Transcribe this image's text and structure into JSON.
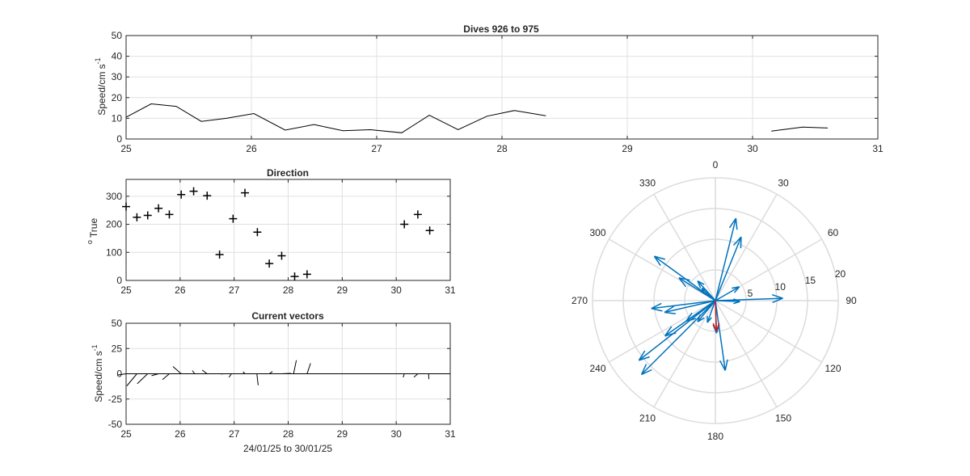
{
  "chart_data": [
    {
      "id": "speed",
      "type": "line",
      "title": "Dives 926 to 975",
      "ylabel": "Speed/cm s",
      "ylabel_sup": "-1",
      "xlim": [
        25,
        31
      ],
      "ylim": [
        0,
        50
      ],
      "xticks": [
        25,
        26,
        27,
        28,
        29,
        30,
        31
      ],
      "yticks": [
        0,
        10,
        20,
        30,
        40,
        50
      ],
      "grid": true,
      "series": [
        {
          "segments": [
            [
              [
                25.0,
                10.5
              ],
              [
                25.2,
                17.0
              ],
              [
                25.4,
                15.8
              ],
              [
                25.6,
                8.5
              ],
              [
                25.8,
                10.0
              ],
              [
                26.02,
                12.3
              ],
              [
                26.27,
                4.3
              ],
              [
                26.5,
                7.0
              ],
              [
                26.73,
                4.0
              ],
              [
                26.95,
                4.5
              ],
              [
                27.2,
                3.0
              ],
              [
                27.42,
                11.5
              ],
              [
                27.65,
                4.5
              ],
              [
                27.88,
                11.0
              ],
              [
                28.1,
                13.8
              ],
              [
                28.35,
                11.2
              ]
            ],
            [
              [
                30.15,
                3.8
              ],
              [
                30.4,
                5.8
              ],
              [
                30.6,
                5.3
              ]
            ]
          ]
        }
      ]
    },
    {
      "id": "direction",
      "type": "scatter",
      "title": "Direction",
      "ylabel": "True",
      "ylabel_sup": "o",
      "xlim": [
        25,
        31
      ],
      "ylim": [
        0,
        360
      ],
      "xticks": [
        25,
        26,
        27,
        28,
        29,
        30,
        31
      ],
      "yticks": [
        0,
        100,
        200,
        300
      ],
      "grid": true,
      "marker": "+",
      "points": [
        [
          25.0,
          263
        ],
        [
          25.2,
          225
        ],
        [
          25.4,
          232
        ],
        [
          25.6,
          257
        ],
        [
          25.8,
          235
        ],
        [
          26.02,
          306
        ],
        [
          26.25,
          318
        ],
        [
          26.5,
          302
        ],
        [
          26.73,
          92
        ],
        [
          26.98,
          220
        ],
        [
          27.2,
          312
        ],
        [
          27.43,
          172
        ],
        [
          27.65,
          60
        ],
        [
          27.88,
          88
        ],
        [
          28.12,
          14
        ],
        [
          28.35,
          22
        ],
        [
          30.15,
          200
        ],
        [
          30.4,
          235
        ],
        [
          30.62,
          178
        ]
      ]
    },
    {
      "id": "vectors",
      "type": "line",
      "title": "Current vectors",
      "ylabel": "Speed/cm s",
      "ylabel_sup": "-1",
      "xlabel": "24/01/25 to 30/01/25",
      "xlim": [
        25,
        31
      ],
      "ylim": [
        -50,
        50
      ],
      "xticks": [
        25,
        26,
        27,
        28,
        29,
        30,
        31
      ],
      "yticks": [
        -50,
        -25,
        0,
        25,
        50
      ],
      "grid": true,
      "stick_scale_days_per_cm_s": 0.0155,
      "sticks": [
        [
          25.0,
          263,
          10.5
        ],
        [
          25.2,
          225,
          17.0
        ],
        [
          25.4,
          232,
          15.8
        ],
        [
          25.6,
          257,
          8.5
        ],
        [
          25.8,
          235,
          10.0
        ],
        [
          26.02,
          306,
          12.3
        ],
        [
          26.27,
          318,
          4.3
        ],
        [
          26.5,
          302,
          7.0
        ],
        [
          26.73,
          92,
          4.0
        ],
        [
          26.95,
          220,
          4.5
        ],
        [
          27.2,
          312,
          3.0
        ],
        [
          27.42,
          172,
          11.5
        ],
        [
          27.65,
          60,
          4.5
        ],
        [
          27.88,
          88,
          11.0
        ],
        [
          28.1,
          14,
          13.8
        ],
        [
          28.35,
          22,
          11.2
        ],
        [
          30.15,
          200,
          3.8
        ],
        [
          30.4,
          235,
          5.8
        ],
        [
          30.6,
          178,
          5.3
        ]
      ]
    },
    {
      "id": "compass",
      "type": "scatter",
      "subtype": "compass",
      "angle_ticks": [
        "0",
        "30",
        "60",
        "90",
        "120",
        "150",
        "180",
        "210",
        "240",
        "270",
        "300",
        "330"
      ],
      "radius_ticks": [
        "5",
        "10",
        "15",
        "20"
      ],
      "rlim": [
        0,
        20
      ],
      "arrow_color": "#0072bd",
      "mean_arrow_color": "#d11a1a",
      "arrows": [
        [
          263,
          10.5
        ],
        [
          225,
          17.0
        ],
        [
          232,
          15.8
        ],
        [
          257,
          8.5
        ],
        [
          235,
          10.0
        ],
        [
          306,
          12.3
        ],
        [
          318,
          4.3
        ],
        [
          302,
          7.0
        ],
        [
          92,
          4.0
        ],
        [
          220,
          4.5
        ],
        [
          312,
          3.0
        ],
        [
          172,
          11.5
        ],
        [
          60,
          4.5
        ],
        [
          88,
          11.0
        ],
        [
          14,
          13.8
        ],
        [
          22,
          11.2
        ],
        [
          200,
          3.8
        ],
        [
          235,
          5.8
        ],
        [
          178,
          5.3
        ]
      ],
      "mean_arrow": [
        178,
        5.0
      ]
    }
  ]
}
